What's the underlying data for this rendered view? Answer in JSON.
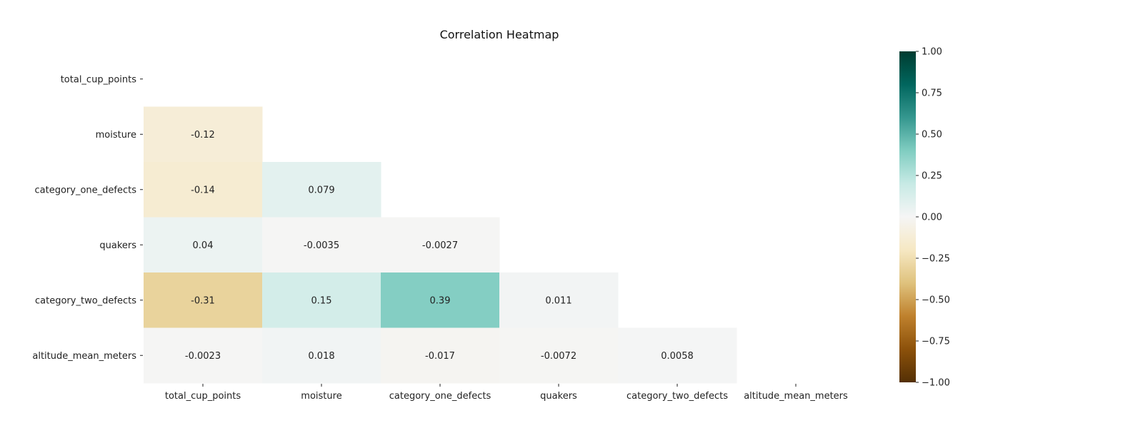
{
  "chart_data": {
    "type": "heatmap",
    "title": "Correlation Heatmap",
    "mask": "upper-triangle",
    "x_labels": [
      "total_cup_points",
      "moisture",
      "category_one_defects",
      "quakers",
      "category_two_defects",
      "altitude_mean_meters"
    ],
    "y_labels": [
      "total_cup_points",
      "moisture",
      "category_one_defects",
      "quakers",
      "category_two_defects",
      "altitude_mean_meters"
    ],
    "values": [
      [
        null,
        null,
        null,
        null,
        null,
        null
      ],
      [
        -0.12,
        null,
        null,
        null,
        null,
        null
      ],
      [
        -0.14,
        0.079,
        null,
        null,
        null,
        null
      ],
      [
        0.04,
        -0.0035,
        -0.0027,
        null,
        null,
        null
      ],
      [
        -0.31,
        0.15,
        0.39,
        0.011,
        null,
        null
      ],
      [
        -0.0023,
        0.018,
        -0.017,
        -0.0072,
        0.0058,
        null
      ]
    ],
    "cell_labels": [
      [
        "",
        "",
        "",
        "",
        "",
        ""
      ],
      [
        "-0.12",
        "",
        "",
        "",
        "",
        ""
      ],
      [
        "-0.14",
        "0.079",
        "",
        "",
        "",
        ""
      ],
      [
        "0.04",
        "-0.0035",
        "-0.0027",
        "",
        "",
        ""
      ],
      [
        "-0.31",
        "0.15",
        "0.39",
        "0.011",
        "",
        ""
      ],
      [
        "-0.0023",
        "0.018",
        "-0.017",
        "-0.0072",
        "0.0058",
        ""
      ]
    ],
    "colorbar": {
      "colormap": "BrBG",
      "vmin": -1.0,
      "vmax": 1.0,
      "ticks": [
        1.0,
        0.75,
        0.5,
        0.25,
        0.0,
        -0.25,
        -0.5,
        -0.75,
        -1.0
      ],
      "tick_labels": [
        "1.00",
        "0.75",
        "0.50",
        "0.25",
        "0.00",
        "−0.25",
        "−0.50",
        "−0.75",
        "−1.00"
      ],
      "placement": "right"
    },
    "colors": {
      "stops": [
        "#543005",
        "#8c510a",
        "#bf812d",
        "#dfc27d",
        "#f6e8c3",
        "#f5f5f5",
        "#c7eae5",
        "#80cdc1",
        "#35978f",
        "#01665e",
        "#003c30"
      ],
      "text": "#222222"
    }
  }
}
